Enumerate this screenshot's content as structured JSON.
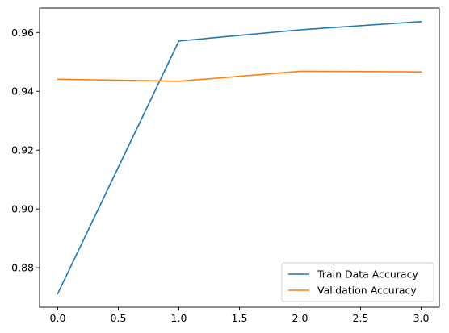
{
  "chart_data": {
    "type": "line",
    "x": [
      0,
      1,
      2,
      3
    ],
    "series": [
      {
        "name": "Train Data Accuracy",
        "color": "#1f77b4",
        "values": [
          0.8712,
          0.9571,
          0.9609,
          0.9637
        ]
      },
      {
        "name": "Validation Accuracy",
        "color": "#ff7f0e",
        "values": [
          0.9441,
          0.9434,
          0.9468,
          0.9466
        ]
      }
    ],
    "xlim": [
      -0.15,
      3.15
    ],
    "ylim": [
      0.8666,
      0.9683
    ],
    "xticks": [
      0.0,
      0.5,
      1.0,
      1.5,
      2.0,
      2.5,
      3.0
    ],
    "xtick_labels": [
      "0.0",
      "0.5",
      "1.0",
      "1.5",
      "2.0",
      "2.5",
      "3.0"
    ],
    "yticks": [
      0.88,
      0.9,
      0.92,
      0.94,
      0.96
    ],
    "ytick_labels": [
      "0.88",
      "0.90",
      "0.92",
      "0.94",
      "0.96"
    ],
    "title": "",
    "xlabel": "",
    "ylabel": "",
    "grid": false,
    "legend_position": "lower-right"
  }
}
